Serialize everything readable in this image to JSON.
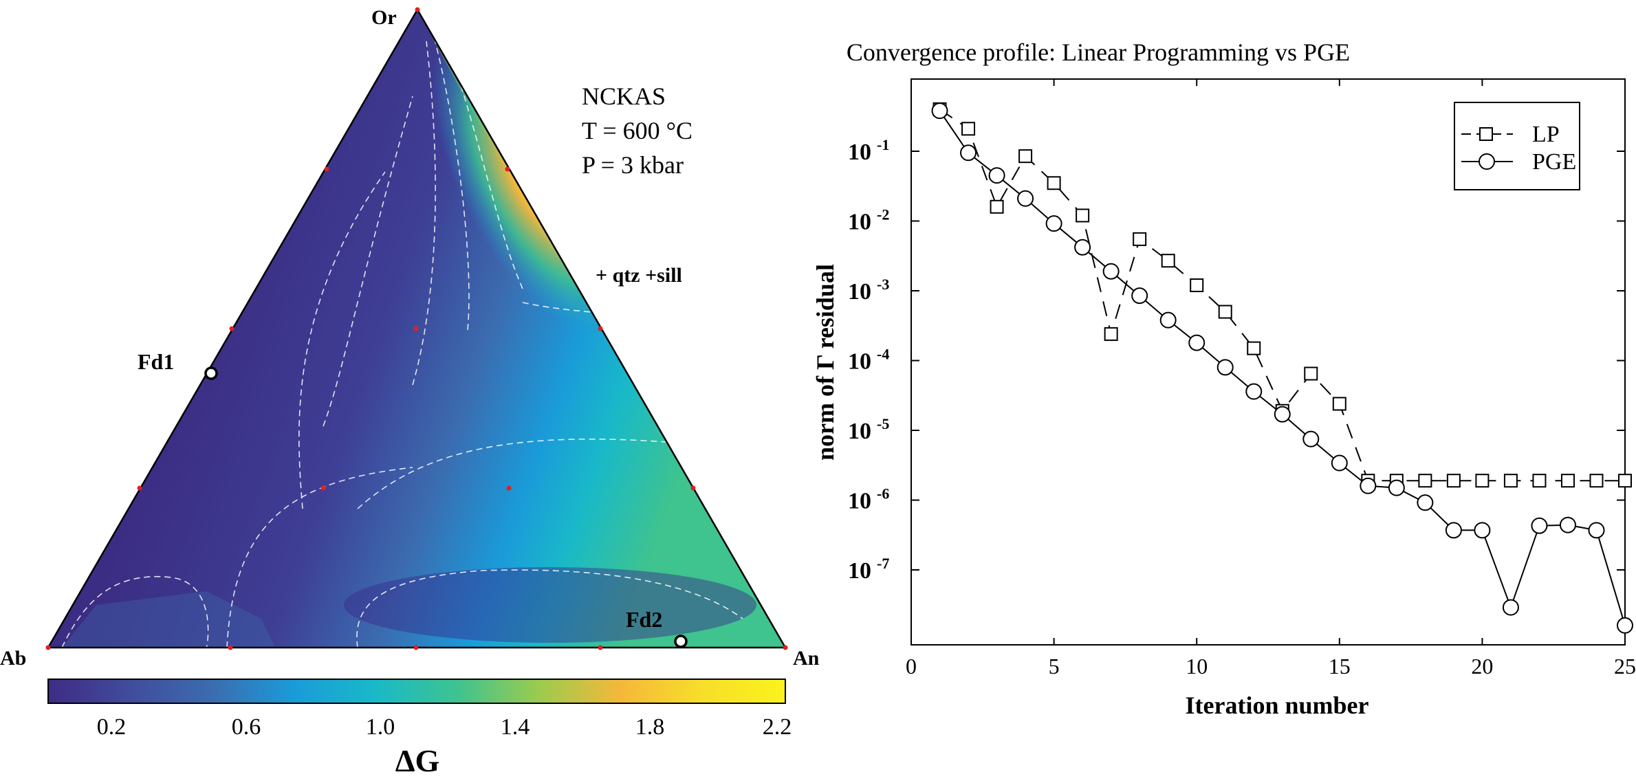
{
  "ternary": {
    "system_label": "NCKAS",
    "temperature_label": "T = 600 °C",
    "pressure_label": "P = 3 kbar",
    "assemblage_label": "+ qtz +sill",
    "vertices": {
      "top": "Or",
      "left": "Ab",
      "right": "An"
    },
    "points": [
      {
        "name": "Fd1"
      },
      {
        "name": "Fd2"
      }
    ],
    "colorbar": {
      "label": "ΔG",
      "ticks": [
        "0.2",
        "0.6",
        "1.0",
        "1.4",
        "1.8",
        "2.2"
      ],
      "colormap": [
        "#3e2c85",
        "#414c9c",
        "#3b6cb0",
        "#1a9bd9",
        "#19b9c8",
        "#3fc38f",
        "#9ccb4e",
        "#f5b83a",
        "#f7df2a",
        "#faf31c"
      ]
    }
  },
  "chart_data": {
    "type": "line",
    "title": "Convergence profile: Linear Programming vs PGE",
    "xlabel": "Iteration number",
    "ylabel": "norm of Γ residual",
    "xlim": [
      0,
      25
    ],
    "ylog": true,
    "xticks": [
      "0",
      "5",
      "10",
      "15",
      "20",
      "25"
    ],
    "yticks": [
      {
        "base": "10",
        "exp": "-1"
      },
      {
        "base": "10",
        "exp": "-2"
      },
      {
        "base": "10",
        "exp": "-3"
      },
      {
        "base": "10",
        "exp": "-4"
      },
      {
        "base": "10",
        "exp": "-5"
      },
      {
        "base": "10",
        "exp": "-6"
      },
      {
        "base": "10",
        "exp": "-7"
      }
    ],
    "legend_position": "top-right",
    "series": [
      {
        "name": "LP",
        "marker": "square",
        "dash": "dashed",
        "x": [
          1,
          2,
          3,
          4,
          5,
          6,
          7,
          8,
          9,
          10,
          11,
          12,
          13,
          14,
          15,
          16,
          17,
          18,
          19,
          20,
          21,
          22,
          23,
          24,
          25
        ],
        "y": [
          0.4,
          0.21,
          0.016,
          0.085,
          0.035,
          0.012,
          0.00024,
          0.0055,
          0.0027,
          0.0012,
          0.0005,
          0.00015,
          1.9e-05,
          6.5e-05,
          2.4e-05,
          1.9e-06,
          1.9e-06,
          1.9e-06,
          1.9e-06,
          1.9e-06,
          1.9e-06,
          1.9e-06,
          1.9e-06,
          1.9e-06,
          1.9e-06
        ]
      },
      {
        "name": "PGE",
        "marker": "circle",
        "dash": "solid",
        "x": [
          1,
          2,
          3,
          4,
          5,
          6,
          7,
          8,
          9,
          10,
          11,
          12,
          13,
          14,
          15,
          16,
          17,
          18,
          19,
          20,
          21,
          22,
          23,
          24,
          25
        ],
        "y": [
          0.38,
          0.095,
          0.045,
          0.021,
          0.0092,
          0.0042,
          0.0019,
          0.00085,
          0.00038,
          0.00018,
          8e-05,
          3.6e-05,
          1.7e-05,
          7.5e-06,
          3.4e-06,
          1.6e-06,
          1.5e-06,
          9.2e-07,
          3.7e-07,
          3.7e-07,
          2.9e-08,
          4.3e-07,
          4.4e-07,
          3.7e-07,
          1.6e-08
        ]
      }
    ]
  }
}
